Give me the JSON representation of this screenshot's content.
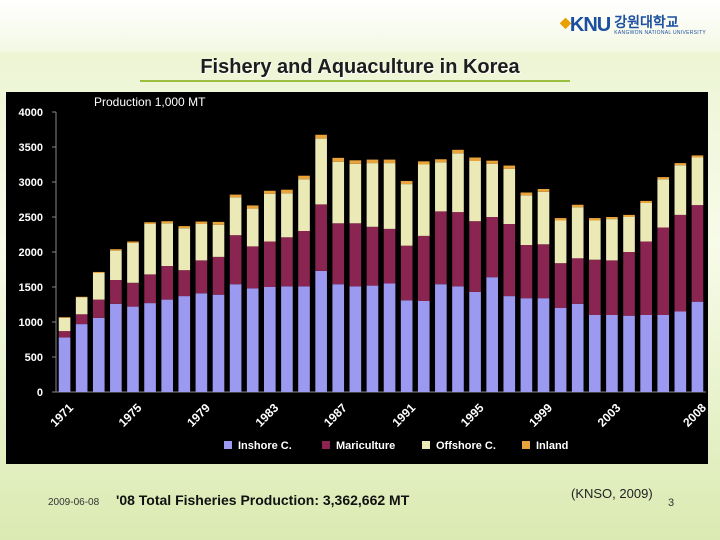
{
  "header": {
    "logo_mark": "KNU",
    "logo_korean": "강원대학교",
    "logo_english": "KANGWON NATIONAL UNIVERSITY"
  },
  "title": "Fishery and Aquaculture in Korea",
  "footer": {
    "total_label": "'08 Total Fisheries Production: 3,362,662 MT",
    "date": "2009-06-08",
    "source": "(KNSO, 2009)",
    "page": "3"
  },
  "chart_data": {
    "type": "bar",
    "stacked": true,
    "unit_label": "Production 1,000 MT",
    "ylim": [
      0,
      4000
    ],
    "yticks": [
      0,
      500,
      1000,
      1500,
      2000,
      2500,
      3000,
      3500,
      4000
    ],
    "xtick_labels": [
      "1971",
      "1975",
      "1979",
      "1983",
      "1987",
      "1991",
      "1995",
      "1999",
      "2003",
      "2008"
    ],
    "categories": [
      1971,
      1972,
      1973,
      1974,
      1975,
      1976,
      1977,
      1978,
      1979,
      1980,
      1981,
      1982,
      1983,
      1984,
      1985,
      1986,
      1987,
      1988,
      1989,
      1990,
      1991,
      1992,
      1993,
      1994,
      1995,
      1996,
      1997,
      1998,
      1999,
      2000,
      2001,
      2002,
      2003,
      2004,
      2005,
      2006,
      2007,
      2008
    ],
    "legend_position": "bottom",
    "series": [
      {
        "name": "Inshore C.",
        "color": "#9b99f0",
        "values": [
          780,
          970,
          1060,
          1260,
          1220,
          1270,
          1320,
          1370,
          1410,
          1390,
          1540,
          1480,
          1500,
          1510,
          1510,
          1730,
          1540,
          1510,
          1520,
          1550,
          1310,
          1300,
          1540,
          1510,
          1430,
          1640,
          1370,
          1340,
          1340,
          1200,
          1260,
          1100,
          1100,
          1090,
          1100,
          1100,
          1150,
          1290
        ]
      },
      {
        "name": "Mariculture",
        "color": "#8a2450",
        "values": [
          90,
          140,
          260,
          340,
          340,
          410,
          480,
          370,
          470,
          540,
          700,
          600,
          650,
          700,
          790,
          950,
          870,
          900,
          840,
          780,
          780,
          930,
          1040,
          1060,
          1010,
          860,
          1030,
          760,
          770,
          640,
          650,
          790,
          780,
          910,
          1050,
          1250,
          1380,
          1380
        ]
      },
      {
        "name": "Offshore C.",
        "color": "#ebe9b5",
        "values": [
          190,
          240,
          380,
          420,
          570,
          720,
          610,
          600,
          520,
          460,
          540,
          540,
          680,
          630,
          740,
          940,
          880,
          850,
          910,
          940,
          880,
          1020,
          700,
          840,
          860,
          760,
          790,
          710,
          750,
          610,
          730,
          560,
          590,
          500,
          550,
          690,
          710,
          680
        ]
      },
      {
        "name": "Inland",
        "color": "#e8a33a",
        "values": [
          10,
          10,
          15,
          20,
          20,
          25,
          30,
          30,
          35,
          40,
          40,
          45,
          45,
          50,
          50,
          55,
          55,
          50,
          50,
          50,
          45,
          45,
          45,
          50,
          50,
          45,
          45,
          40,
          40,
          35,
          35,
          35,
          30,
          30,
          30,
          30,
          30,
          30
        ]
      }
    ]
  }
}
